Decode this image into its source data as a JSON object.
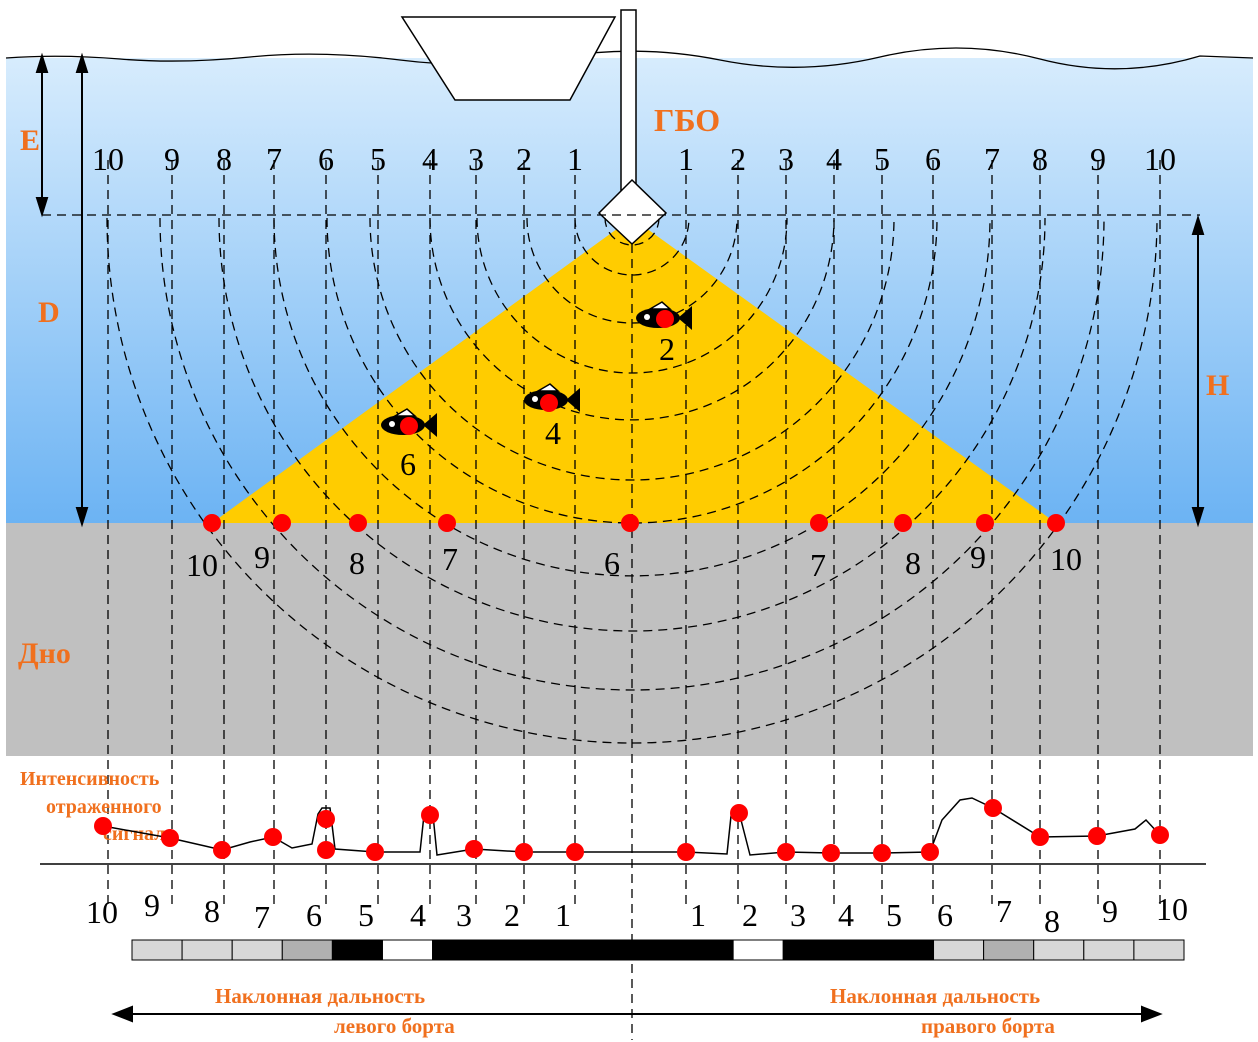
{
  "labels": {
    "sonar": "ГБО",
    "e": "E",
    "d": "D",
    "h": "H",
    "bottom": "Дно",
    "intensity": [
      "Интенсивность",
      "отраженного",
      "сигнала"
    ],
    "left_range": [
      "Наклонная дальность",
      "левого борта"
    ],
    "right_range": [
      "Наклонная дальность",
      "правого борта"
    ]
  },
  "beam_numbers": {
    "left": [
      "10",
      "9",
      "8",
      "7",
      "6",
      "5",
      "4",
      "3",
      "2",
      "1"
    ],
    "right": [
      "1",
      "2",
      "3",
      "4",
      "5",
      "6",
      "7",
      "8",
      "9",
      "10"
    ]
  },
  "bottom_numbers": {
    "left": [
      "10",
      "9",
      "8",
      "7"
    ],
    "center": "6",
    "right": [
      "7",
      "8",
      "9",
      "10"
    ]
  },
  "fish_labels": [
    "2",
    "4",
    "6"
  ],
  "colors": {
    "water": "#6fb3f0",
    "seabed": "#c0c0c0",
    "cone": "#ffcc00",
    "accent": "#f0701e",
    "marker": "#ff0000"
  },
  "signal_bar": [
    "#d8d8d8",
    "#d8d8d8",
    "#d8d8d8",
    "#b0b0b0",
    "#000000",
    "#ffffff",
    "#000000",
    "#000000",
    "#000000",
    "#000000",
    "#000000",
    "#000000",
    "#ffffff",
    "#000000",
    "#000000",
    "#000000",
    "#d8d8d8",
    "#b0b0b0",
    "#d8d8d8",
    "#d8d8d8",
    "#d8d8d8"
  ]
}
